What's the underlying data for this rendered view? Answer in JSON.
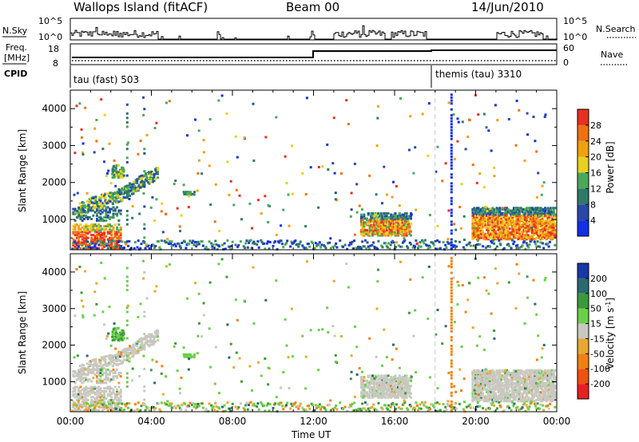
{
  "header": {
    "station": "Wallops Island (fitACF)",
    "beam": "Beam 00",
    "date": "14/Jun/2010"
  },
  "noise_panel": {
    "left_label": "N.Sky",
    "right_label": "N.Search",
    "ticks": [
      "10^5",
      "10^0"
    ]
  },
  "freq_panel": {
    "left_label_1": "Freq.",
    "left_label_2": "[MHz]",
    "left_ticks": [
      "18",
      "8"
    ],
    "right_label": "Nave",
    "right_ticks": [
      "60",
      "0"
    ]
  },
  "cpid_panel": {
    "label": "CPID",
    "programs": [
      {
        "name": "tau (fast) 503",
        "start_hour": 0
      },
      {
        "name": "themis (tau) 3310",
        "start_hour": 18
      }
    ]
  },
  "colors": {
    "power_scale": [
      "#1030e8",
      "#2848a8",
      "#2e7a68",
      "#4aa85a",
      "#e8d020",
      "#f0a010",
      "#f07010",
      "#e83020"
    ],
    "velocity_scale": [
      "#1838a8",
      "#2a6a70",
      "#3a9a3a",
      "#6ad048",
      "#c8c8c0",
      "#e8a830",
      "#f08010",
      "#f05010",
      "#e82020"
    ]
  },
  "chart_data": [
    {
      "type": "heatmap",
      "title": "",
      "quantity": "Power",
      "xlabel": "",
      "ylabel": "Slant Range [km]",
      "xlim": [
        0,
        24
      ],
      "ylim": [
        180,
        4500
      ],
      "y_ticks": [
        "1000",
        "2000",
        "3000",
        "4000"
      ],
      "colorbar": {
        "label": "Power [dB]",
        "ticks": [
          "4",
          "8",
          "12",
          "16",
          "20",
          "24",
          "28"
        ]
      },
      "features": [
        {
          "name": "dense near-range",
          "time_start": 0.0,
          "time_end": 2.5,
          "range_start": 250,
          "range_end": 900,
          "level": "high"
        },
        {
          "name": "rising arc",
          "time_start": 0.3,
          "time_end": 4.3,
          "range_start": 1000,
          "range_end": 2300,
          "level": "mid"
        },
        {
          "name": "evening band",
          "time_start": 14.3,
          "time_end": 16.8,
          "range_start": 600,
          "range_end": 1200,
          "level": "high"
        },
        {
          "name": "late band",
          "time_start": 19.8,
          "time_end": 24.0,
          "range_start": 500,
          "range_end": 1350,
          "level": "high"
        }
      ]
    },
    {
      "type": "heatmap",
      "title": "",
      "quantity": "Velocity",
      "xlabel": "Time UT",
      "ylabel": "Slant Range [km]",
      "xlim": [
        0,
        24
      ],
      "ylim": [
        180,
        4500
      ],
      "x_ticks": [
        "00:00",
        "04:00",
        "08:00",
        "12:00",
        "16:00",
        "20:00",
        "00:00"
      ],
      "y_ticks": [
        "1000",
        "2000",
        "3000",
        "4000"
      ],
      "colorbar": {
        "label": "Velocity [m s^-1]",
        "ticks": [
          "200",
          "100",
          "50",
          "15",
          "-15",
          "-50",
          "-100",
          "-200"
        ]
      },
      "features": [
        {
          "name": "ground scatter near-range",
          "time_start": 0.0,
          "time_end": 2.5,
          "range_start": 250,
          "range_end": 900,
          "level": "low"
        },
        {
          "name": "rising arc",
          "time_start": 0.3,
          "time_end": 4.3,
          "range_start": 1000,
          "range_end": 2300,
          "level": "low"
        },
        {
          "name": "evening band",
          "time_start": 14.3,
          "time_end": 16.8,
          "range_start": 600,
          "range_end": 1200,
          "level": "low"
        },
        {
          "name": "late band",
          "time_start": 19.8,
          "time_end": 24.0,
          "range_start": 500,
          "range_end": 1350,
          "level": "low"
        }
      ]
    }
  ]
}
